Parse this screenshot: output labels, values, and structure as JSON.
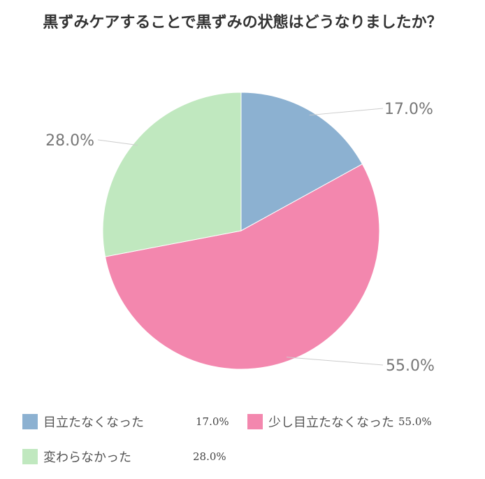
{
  "chart_data": {
    "type": "pie",
    "title": "黒ずみケアすることで黒ずみの状態はどうなりましたか？",
    "slices": [
      {
        "label": "目立たなくなった",
        "value": 17.0,
        "display": "17.0%",
        "color": "#8cb1d1"
      },
      {
        "label": "少し目立たなくなった",
        "value": 55.0,
        "display": "55.0%",
        "color": "#f387ae"
      },
      {
        "label": "変わらなかった",
        "value": 28.0,
        "display": "28.0%",
        "color": "#c0e8bf"
      }
    ],
    "start_angle_deg": 0,
    "direction": "clockwise",
    "legend_position": "bottom"
  }
}
